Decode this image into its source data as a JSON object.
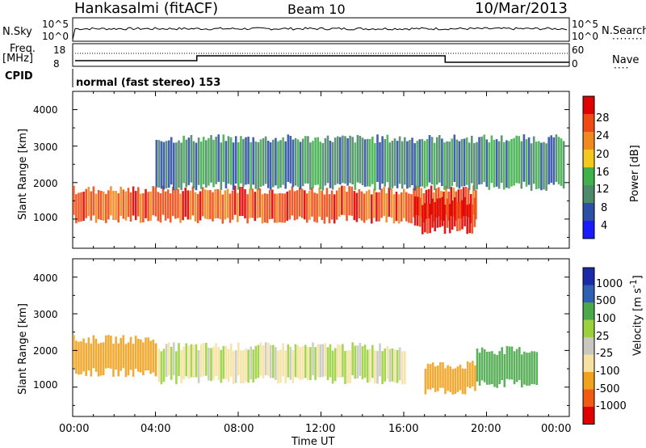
{
  "header": {
    "station": "Hankasalmi (fitACF)",
    "beam": "Beam 10",
    "date": "10/Mar/2013"
  },
  "top_panels": {
    "nsky_label": "N.Sky",
    "nsky_ticks": [
      "10^5",
      "10^0"
    ],
    "nsearch_label": "N.Search",
    "nsearch_ticks": [
      "10^5",
      "10^0"
    ],
    "freq_label_1": "Freq.",
    "freq_label_2": "[MHz]",
    "freq_ticks": [
      "18",
      "8"
    ],
    "nave_label": "Nave",
    "nave_ticks": [
      "60",
      "0"
    ],
    "cpid_label": "CPID",
    "cpid_value": "normal (fast stereo) 153"
  },
  "x_axis": {
    "label": "Time UT",
    "ticks": [
      "00:00",
      "04:00",
      "08:00",
      "12:00",
      "16:00",
      "20:00",
      "00:00"
    ]
  },
  "colors": {
    "power": [
      "#1a1aff",
      "#2e4fa6",
      "#4c8a6a",
      "#3fb04a",
      "#f5c81e",
      "#f08a1e",
      "#f04a14",
      "#e00000"
    ],
    "velocity": [
      "#e00000",
      "#f05a14",
      "#f0a21e",
      "#f5e1a0",
      "#c8c8c0",
      "#9ad23c",
      "#4aa84a",
      "#2e5fb0",
      "#1a2aa8"
    ]
  },
  "chart_data": [
    {
      "type": "heatmap",
      "title": "",
      "xlabel": "Time UT",
      "ylabel": "Slant Range [km]",
      "xlim": [
        0,
        24
      ],
      "ylim": [
        200,
        4500
      ],
      "y_ticks": [
        "1000",
        "2000",
        "3000",
        "4000"
      ],
      "colorbar": {
        "label": "Power [dB]",
        "range": [
          0,
          32
        ],
        "ticks": [
          "4",
          "8",
          "12",
          "16",
          "20",
          "24",
          "28"
        ]
      },
      "echo_bands_hours_km": [
        {
          "name": "main",
          "from_h": 0,
          "to_h": 19.5,
          "range_km": [
            1000,
            1800
          ],
          "power_db": 26
        },
        {
          "name": "upper",
          "from_h": 4,
          "to_h": 23.8,
          "range_km": [
            1900,
            3200
          ],
          "power_db": 10
        },
        {
          "name": "strong_patch",
          "from_h": 16.5,
          "to_h": 19.5,
          "range_km": [
            700,
            1500
          ],
          "power_db": 30
        }
      ]
    },
    {
      "type": "heatmap",
      "title": "",
      "xlabel": "Time UT",
      "ylabel": "Slant Range [km]",
      "xlim": [
        0,
        24
      ],
      "ylim": [
        200,
        4500
      ],
      "y_ticks": [
        "1000",
        "2000",
        "3000",
        "4000"
      ],
      "colorbar": {
        "label": "Velocity [m s-1]",
        "ticks": [
          "1000",
          "500",
          "100",
          "25",
          "-25",
          "-100",
          "-500",
          "-1000"
        ]
      },
      "echo_bands_hours_km": [
        {
          "name": "ground_scatter",
          "from_h": 4,
          "to_h": 16,
          "range_km": [
            1200,
            2100
          ],
          "velocity": 0
        },
        {
          "name": "early_negative",
          "from_h": 0,
          "to_h": 4,
          "range_km": [
            1400,
            2300
          ],
          "velocity": -200
        },
        {
          "name": "late_positive",
          "from_h": 19.5,
          "to_h": 22.5,
          "range_km": [
            1100,
            2000
          ],
          "velocity": 300
        },
        {
          "name": "evening_negative",
          "from_h": 17,
          "to_h": 19.5,
          "range_km": [
            900,
            1600
          ],
          "velocity": -400
        }
      ]
    }
  ]
}
